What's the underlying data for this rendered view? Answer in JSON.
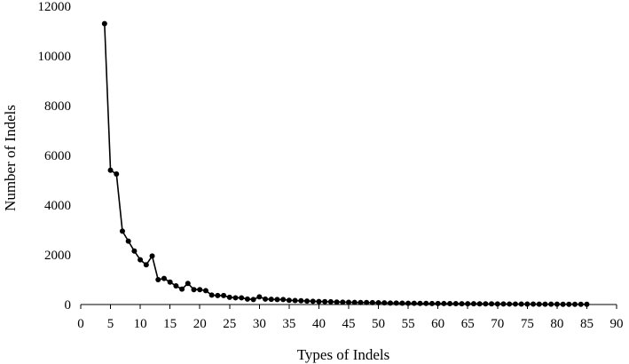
{
  "chart_data": {
    "type": "line",
    "title": "",
    "xlabel": "Types of Indels",
    "ylabel": "Number of Indels",
    "xlim": [
      0,
      90
    ],
    "ylim": [
      0,
      12000
    ],
    "x_ticks": [
      0,
      5,
      10,
      15,
      20,
      25,
      30,
      35,
      40,
      45,
      50,
      55,
      60,
      65,
      70,
      75,
      80,
      85,
      90
    ],
    "y_ticks": [
      0,
      2000,
      4000,
      6000,
      8000,
      10000,
      12000
    ],
    "x_tick_labels": [
      "0",
      "5",
      "10",
      "15",
      "20",
      "25",
      "30",
      "35",
      "40",
      "45",
      "50",
      "55",
      "60",
      "65",
      "70",
      "75",
      "80",
      "85",
      "90"
    ],
    "y_tick_labels": [
      "0",
      "2000",
      "4000",
      "6000",
      "8000",
      "10000",
      "12000"
    ],
    "grid": false,
    "marker": "circle",
    "series": [
      {
        "color": "#000000",
        "x": [
          4,
          5,
          6,
          7,
          8,
          9,
          10,
          11,
          12,
          13,
          14,
          15,
          16,
          17,
          18,
          19,
          20,
          21,
          22,
          23,
          24,
          25,
          26,
          27,
          28,
          29,
          30,
          31,
          32,
          33,
          34,
          35,
          36,
          37,
          38,
          39,
          40,
          41,
          42,
          43,
          44,
          45,
          46,
          47,
          48,
          49,
          50,
          51,
          52,
          53,
          54,
          55,
          56,
          57,
          58,
          59,
          60,
          61,
          62,
          63,
          64,
          65,
          66,
          67,
          68,
          69,
          70,
          71,
          72,
          73,
          74,
          75,
          76,
          77,
          78,
          79,
          80,
          81,
          82,
          83,
          84,
          85
        ],
        "y": [
          11300,
          5400,
          5250,
          2950,
          2550,
          2150,
          1800,
          1600,
          1950,
          1000,
          1050,
          900,
          750,
          620,
          850,
          600,
          600,
          560,
          380,
          360,
          360,
          290,
          270,
          270,
          220,
          200,
          310,
          220,
          210,
          200,
          200,
          170,
          160,
          150,
          140,
          130,
          120,
          115,
          110,
          100,
          95,
          90,
          85,
          80,
          80,
          75,
          70,
          65,
          60,
          60,
          55,
          50,
          50,
          45,
          45,
          40,
          40,
          38,
          36,
          34,
          32,
          30,
          30,
          28,
          26,
          25,
          24,
          22,
          20,
          20,
          18,
          17,
          16,
          15,
          14,
          13,
          12,
          11,
          10,
          10,
          9,
          8
        ]
      }
    ]
  }
}
